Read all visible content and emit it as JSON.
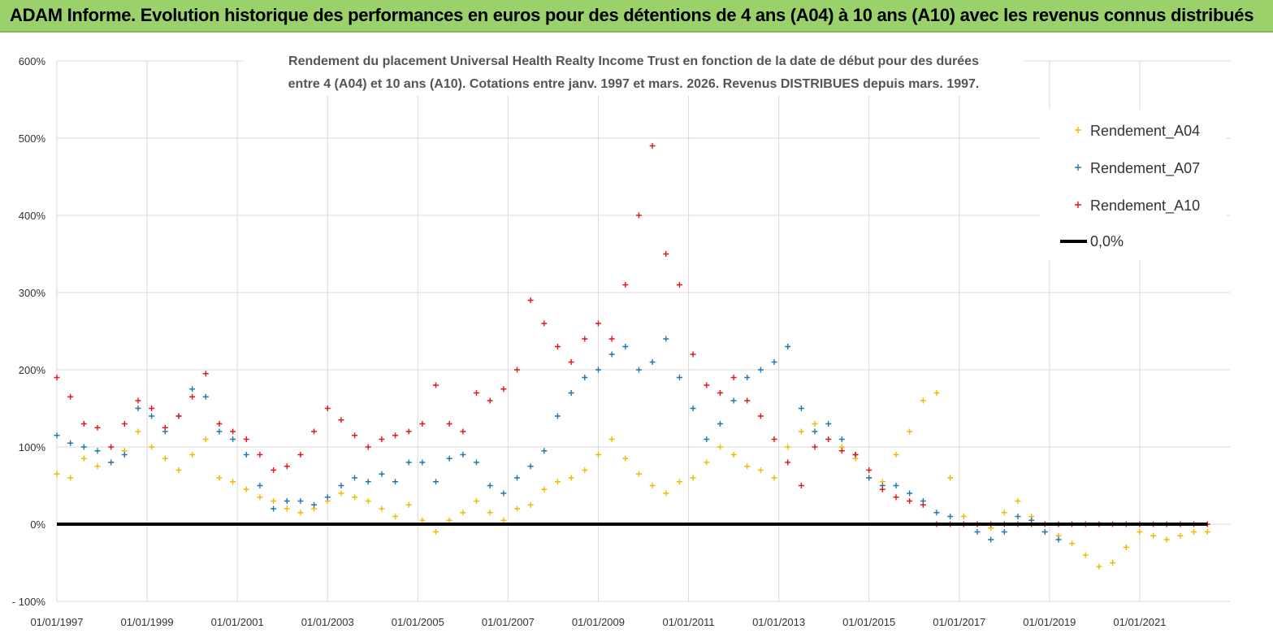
{
  "banner": {
    "title": "ADAM Informe. Evolution historique des performances en euros pour des détentions de 4 ans (A04) à 10 ans (A10) avec les revenus connus distribués"
  },
  "chart_data": {
    "type": "scatter",
    "title_line1": "Rendement du placement Universal Health Realty Income Trust en fonction de la date de début pour des durées",
    "title_line2": "entre 4 (A04) et 10 ans (A10). Cotations entre janv. 1997 et mars. 2026. Revenus DISTRIBUES depuis mars. 1997.",
    "xlabel": "",
    "ylabel": "",
    "xlim": [
      1997.0,
      2023.0
    ],
    "ylim": [
      -100,
      600
    ],
    "y_ticks": [
      600,
      500,
      400,
      300,
      200,
      100,
      0,
      -100
    ],
    "y_tick_labels": [
      "600%",
      "500%",
      "400%",
      "300%",
      "200%",
      "100%",
      "0%",
      "- 100%"
    ],
    "x_ticks": [
      1997,
      1999,
      2001,
      2003,
      2005,
      2007,
      2009,
      2011,
      2013,
      2015,
      2017,
      2019,
      2021
    ],
    "x_tick_labels": [
      "01/01/1997",
      "01/01/1999",
      "01/01/2001",
      "01/01/2003",
      "01/01/2005",
      "01/01/2007",
      "01/01/2009",
      "01/01/2011",
      "01/01/2013",
      "01/01/2015",
      "01/01/2017",
      "01/01/2019",
      "01/01/2021"
    ],
    "grid": true,
    "legend_position": "top-right",
    "legend": [
      "Rendement_A04",
      "Rendement_A07",
      "Rendement_A10",
      "0,0%"
    ],
    "series": [
      {
        "name": "Rendement_A04",
        "color": "#f5b800",
        "x": [
          1997.0,
          1997.3,
          1997.6,
          1997.9,
          1998.2,
          1998.5,
          1998.8,
          1999.1,
          1999.4,
          1999.7,
          2000.0,
          2000.3,
          2000.6,
          2000.9,
          2001.2,
          2001.5,
          2001.8,
          2002.1,
          2002.4,
          2002.7,
          2003.0,
          2003.3,
          2003.6,
          2003.9,
          2004.2,
          2004.5,
          2004.8,
          2005.1,
          2005.4,
          2005.7,
          2006.0,
          2006.3,
          2006.6,
          2006.9,
          2007.2,
          2007.5,
          2007.8,
          2008.1,
          2008.4,
          2008.7,
          2009.0,
          2009.3,
          2009.6,
          2009.9,
          2010.2,
          2010.5,
          2010.8,
          2011.1,
          2011.4,
          2011.7,
          2012.0,
          2012.3,
          2012.6,
          2012.9,
          2013.2,
          2013.5,
          2013.8,
          2014.1,
          2014.4,
          2014.7,
          2015.0,
          2015.3,
          2015.6,
          2015.9,
          2016.2,
          2016.5,
          2016.8,
          2017.1,
          2017.4,
          2017.7,
          2018.0,
          2018.3,
          2018.6,
          2018.9,
          2019.2,
          2019.5,
          2019.8,
          2020.1,
          2020.4,
          2020.7,
          2021.0,
          2021.3,
          2021.6,
          2021.9,
          2022.2,
          2022.5
        ],
        "values": [
          65,
          60,
          85,
          75,
          80,
          95,
          120,
          100,
          85,
          70,
          90,
          110,
          60,
          55,
          45,
          35,
          30,
          20,
          15,
          20,
          30,
          40,
          35,
          30,
          20,
          10,
          25,
          5,
          -10,
          5,
          15,
          30,
          15,
          5,
          20,
          25,
          45,
          55,
          60,
          70,
          90,
          110,
          85,
          65,
          50,
          40,
          55,
          60,
          80,
          100,
          90,
          75,
          70,
          60,
          100,
          120,
          130,
          110,
          100,
          85,
          60,
          55,
          90,
          120,
          160,
          170,
          60,
          10,
          0,
          -5,
          15,
          30,
          10,
          -10,
          -15,
          -25,
          -40,
          -55,
          -50,
          -30,
          -10,
          -15,
          -20,
          -15,
          -10,
          -10
        ]
      },
      {
        "name": "Rendement_A07",
        "color": "#1f77b4",
        "x": [
          1997.0,
          1997.3,
          1997.6,
          1997.9,
          1998.2,
          1998.5,
          1998.8,
          1999.1,
          1999.4,
          1999.7,
          2000.0,
          2000.3,
          2000.6,
          2000.9,
          2001.2,
          2001.5,
          2001.8,
          2002.1,
          2002.4,
          2002.7,
          2003.0,
          2003.3,
          2003.6,
          2003.9,
          2004.2,
          2004.5,
          2004.8,
          2005.1,
          2005.4,
          2005.7,
          2006.0,
          2006.3,
          2006.6,
          2006.9,
          2007.2,
          2007.5,
          2007.8,
          2008.1,
          2008.4,
          2008.7,
          2009.0,
          2009.3,
          2009.6,
          2009.9,
          2010.2,
          2010.5,
          2010.8,
          2011.1,
          2011.4,
          2011.7,
          2012.0,
          2012.3,
          2012.6,
          2012.9,
          2013.2,
          2013.5,
          2013.8,
          2014.1,
          2014.4,
          2014.7,
          2015.0,
          2015.3,
          2015.6,
          2015.9,
          2016.2,
          2016.5,
          2016.8,
          2017.1,
          2017.4,
          2017.7,
          2018.0,
          2018.3,
          2018.6,
          2018.9,
          2019.2
        ],
        "values": [
          115,
          105,
          100,
          95,
          80,
          90,
          150,
          140,
          120,
          140,
          175,
          165,
          120,
          110,
          90,
          50,
          20,
          30,
          30,
          25,
          35,
          50,
          60,
          55,
          65,
          55,
          80,
          80,
          55,
          85,
          90,
          80,
          50,
          40,
          60,
          75,
          95,
          140,
          170,
          190,
          200,
          220,
          230,
          200,
          210,
          240,
          190,
          150,
          110,
          130,
          160,
          190,
          200,
          210,
          230,
          150,
          120,
          130,
          110,
          90,
          60,
          50,
          50,
          40,
          30,
          15,
          10,
          0,
          -10,
          -20,
          -10,
          10,
          5,
          -10,
          -20
        ]
      },
      {
        "name": "Rendement_A10",
        "color": "#e6141c",
        "x": [
          1997.0,
          1997.3,
          1997.6,
          1997.9,
          1998.2,
          1998.5,
          1998.8,
          1999.1,
          1999.4,
          1999.7,
          2000.0,
          2000.3,
          2000.6,
          2000.9,
          2001.2,
          2001.5,
          2001.8,
          2002.1,
          2002.4,
          2002.7,
          2003.0,
          2003.3,
          2003.6,
          2003.9,
          2004.2,
          2004.5,
          2004.8,
          2005.1,
          2005.4,
          2005.7,
          2006.0,
          2006.3,
          2006.6,
          2006.9,
          2007.2,
          2007.5,
          2007.8,
          2008.1,
          2008.4,
          2008.7,
          2009.0,
          2009.3,
          2009.6,
          2009.9,
          2010.2,
          2010.5,
          2010.8,
          2011.1,
          2011.4,
          2011.7,
          2012.0,
          2012.3,
          2012.6,
          2012.9,
          2013.2,
          2013.5,
          2013.8,
          2014.1,
          2014.4,
          2014.7,
          2015.0,
          2015.3,
          2015.6,
          2015.9,
          2016.2,
          2016.5,
          2016.8,
          2017.1,
          2017.4,
          2017.7,
          2018.0,
          2018.3,
          2018.6,
          2018.9,
          2019.2,
          2019.5,
          2019.8,
          2020.1,
          2020.4,
          2020.7,
          2021.0,
          2021.3,
          2021.6,
          2021.9,
          2022.2,
          2022.5
        ],
        "values": [
          190,
          165,
          130,
          125,
          100,
          130,
          160,
          150,
          125,
          140,
          165,
          195,
          130,
          120,
          110,
          90,
          70,
          75,
          90,
          120,
          150,
          135,
          115,
          100,
          110,
          115,
          120,
          130,
          180,
          130,
          120,
          170,
          160,
          175,
          200,
          290,
          260,
          230,
          210,
          240,
          260,
          240,
          310,
          400,
          490,
          350,
          310,
          220,
          180,
          170,
          190,
          160,
          140,
          110,
          80,
          50,
          100,
          110,
          95,
          90,
          70,
          45,
          35,
          30,
          25,
          0,
          0,
          0,
          0,
          0,
          0,
          0,
          0,
          0,
          0,
          0,
          0,
          0,
          0,
          0,
          0,
          0,
          0,
          0,
          0,
          0
        ]
      },
      {
        "name": "0,0%",
        "color": "#000000",
        "x": [
          1997.0,
          2022.5
        ],
        "values": [
          0,
          0
        ]
      }
    ]
  }
}
